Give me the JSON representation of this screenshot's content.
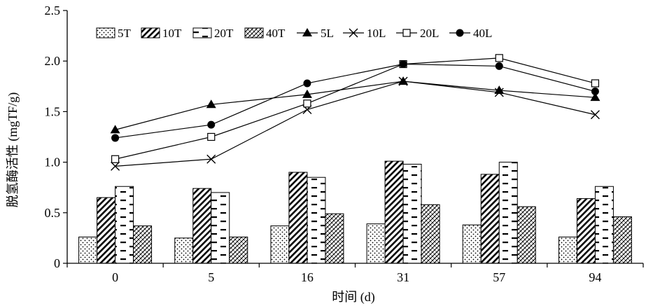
{
  "chart_data": {
    "type": "bar",
    "xlabel": "时间 (d)",
    "ylabel": "脱氢酶活性 (mgTF/g)",
    "categories": [
      "0",
      "5",
      "16",
      "31",
      "57",
      "94"
    ],
    "ylim": [
      0,
      2.5
    ],
    "yticks": [
      "0",
      "0.5",
      "1.0",
      "1.5",
      "2.0",
      "2.5"
    ],
    "grid": false,
    "legend_position": "top",
    "bar_series": [
      {
        "name": "5T",
        "pattern": "dots",
        "values": [
          0.26,
          0.25,
          0.37,
          0.39,
          0.38,
          0.26
        ]
      },
      {
        "name": "10T",
        "pattern": "diagonal",
        "values": [
          0.65,
          0.74,
          0.9,
          1.01,
          0.88,
          0.64
        ]
      },
      {
        "name": "20T",
        "pattern": "dashes",
        "values": [
          0.76,
          0.7,
          0.85,
          0.98,
          1.0,
          0.76
        ]
      },
      {
        "name": "40T",
        "pattern": "weave",
        "values": [
          0.37,
          0.26,
          0.49,
          0.58,
          0.56,
          0.46
        ]
      }
    ],
    "line_series": [
      {
        "name": "5L",
        "marker": "triangle",
        "values": [
          1.32,
          1.57,
          1.67,
          1.8,
          1.71,
          1.64
        ]
      },
      {
        "name": "10L",
        "marker": "x",
        "values": [
          0.96,
          1.03,
          1.52,
          1.8,
          1.69,
          1.47
        ]
      },
      {
        "name": "20L",
        "marker": "open-square",
        "values": [
          1.03,
          1.25,
          1.58,
          1.97,
          2.03,
          1.78
        ]
      },
      {
        "name": "40L",
        "marker": "filled-circle",
        "values": [
          1.24,
          1.37,
          1.78,
          1.97,
          1.95,
          1.7
        ]
      }
    ]
  }
}
